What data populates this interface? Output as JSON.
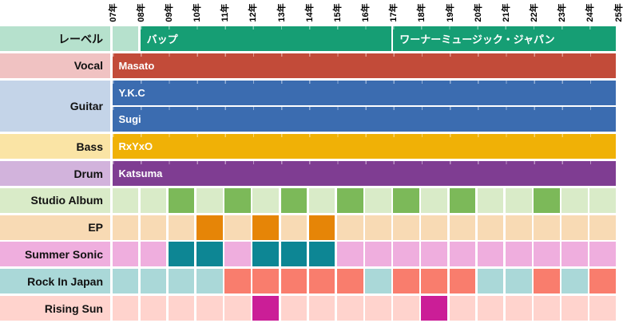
{
  "chart_data": {
    "type": "timeline",
    "x_axis": {
      "tick_labels": [
        "07年",
        "08年",
        "09年",
        "10年",
        "11年",
        "12年",
        "13年",
        "14年",
        "15年",
        "16年",
        "17年",
        "18年",
        "19年",
        "20年",
        "21年",
        "22年",
        "23年",
        "24年",
        "25年"
      ],
      "base_year": 2007,
      "x_range": [
        2007,
        2025
      ]
    },
    "rows": [
      {
        "id": "label-row",
        "header": "レーベル",
        "header_color": "#b6e1cd",
        "cell_color": "#b6e1cd",
        "lines": [
          {
            "bars": [
              {
                "id": "vap",
                "label": "バップ",
                "start_year": 2008,
                "end_year": 2017,
                "color": "#169e74"
              },
              {
                "id": "warner-music-japan",
                "label": "ワーナーミュージック・ジャパン",
                "start_year": 2017,
                "end_year": 2025,
                "color": "#169e74"
              }
            ]
          }
        ]
      },
      {
        "id": "vocal",
        "header": "Vocal",
        "header_color": "#f0c2c2",
        "cell_color": "#f0c2c2",
        "lines": [
          {
            "bars": [
              {
                "id": "masato",
                "label": "Masato",
                "start_year": 2007,
                "end_year": 2025,
                "color": "#c24b39"
              }
            ]
          }
        ]
      },
      {
        "id": "guitar",
        "header": "Guitar",
        "header_color": "#c4d4e8",
        "cell_color": "#c4d4e8",
        "lines": [
          {
            "bars": [
              {
                "id": "ykc",
                "label": "Y.K.C",
                "start_year": 2007,
                "end_year": 2025,
                "color": "#3b6cb0"
              }
            ]
          },
          {
            "bars": [
              {
                "id": "sugi",
                "label": "Sugi",
                "start_year": 2007,
                "end_year": 2025,
                "color": "#3b6cb0"
              }
            ]
          }
        ]
      },
      {
        "id": "bass",
        "header": "Bass",
        "header_color": "#fae4a5",
        "cell_color": "#fae4a5",
        "lines": [
          {
            "bars": [
              {
                "id": "rxyxo",
                "label": "RxYxO",
                "start_year": 2007,
                "end_year": 2025,
                "color": "#f0b106"
              }
            ]
          }
        ]
      },
      {
        "id": "drum",
        "header": "Drum",
        "header_color": "#d2b3dc",
        "cell_color": "#d2b3dc",
        "lines": [
          {
            "bars": [
              {
                "id": "katsuma",
                "label": "Katsuma",
                "start_year": 2007,
                "end_year": 2025,
                "color": "#7f3d92"
              }
            ]
          }
        ]
      },
      {
        "id": "studio-album",
        "header": "Studio Album",
        "header_color": "#d9ebc8",
        "cell_color": "#d9ebc8",
        "highlight_color": "#7cb959",
        "lines": [
          {
            "highlight_years": [
              2009,
              2011,
              2013,
              2015,
              2017,
              2019,
              2022
            ]
          }
        ]
      },
      {
        "id": "ep",
        "header": "EP",
        "header_color": "#f8dab4",
        "cell_color": "#f8dab4",
        "highlight_color": "#e68507",
        "lines": [
          {
            "highlight_years": [
              2010,
              2012,
              2014
            ]
          }
        ]
      },
      {
        "id": "summer-sonic",
        "header": "Summer Sonic",
        "header_color": "#efaede",
        "cell_color": "#efaede",
        "highlight_color": "#0d8694",
        "lines": [
          {
            "highlight_years": [
              2009,
              2010,
              2012,
              2013,
              2014
            ]
          }
        ]
      },
      {
        "id": "rock-in-japan",
        "header": "Rock In Japan",
        "header_color": "#aad8d8",
        "cell_color": "#aad8d8",
        "highlight_color": "#f97d6d",
        "lines": [
          {
            "highlight_years": [
              2011,
              2012,
              2013,
              2014,
              2015,
              2017,
              2018,
              2019,
              2022,
              2024
            ]
          }
        ]
      },
      {
        "id": "rising-sun",
        "header": "Rising Sun",
        "header_color": "#ffd3cd",
        "cell_color": "#ffd3cd",
        "highlight_color": "#cb1e97",
        "lines": [
          {
            "highlight_years": [
              2012,
              2018
            ]
          }
        ]
      }
    ]
  }
}
